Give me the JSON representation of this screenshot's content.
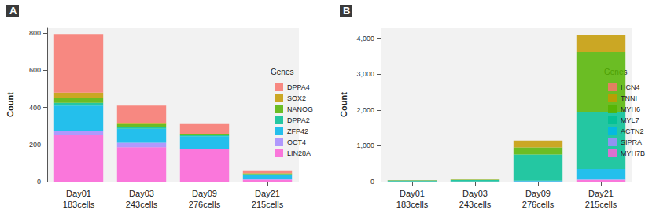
{
  "chart_data": [
    {
      "type": "bar",
      "panel": "A",
      "stacked": true,
      "grid": false,
      "legend": "right",
      "ylabel": "Count",
      "legend_title": "Genes",
      "categories": [
        "Day01",
        "Day03",
        "Day09",
        "Day21"
      ],
      "sublabels": [
        "183cells",
        "243cells",
        "276cells",
        "215cells"
      ],
      "ylim": [
        0,
        830
      ],
      "yticks": [
        0,
        200,
        400,
        600,
        800
      ],
      "series": [
        {
          "name": "DPPA4",
          "color": "#F8766D",
          "values": [
            315,
            95,
            53,
            15
          ]
        },
        {
          "name": "SOX2",
          "color": "#C49A00",
          "values": [
            30,
            5,
            2,
            2
          ]
        },
        {
          "name": "NANOG",
          "color": "#53B400",
          "values": [
            25,
            15,
            5,
            3
          ]
        },
        {
          "name": "DPPA2",
          "color": "#00C094",
          "values": [
            15,
            10,
            5,
            5
          ]
        },
        {
          "name": "ZFP42",
          "color": "#00B6EB",
          "values": [
            135,
            75,
            67,
            20
          ]
        },
        {
          "name": "OCT4",
          "color": "#A58AFF",
          "values": [
            25,
            25,
            3,
            5
          ]
        },
        {
          "name": "LIN28A",
          "color": "#FB61D7",
          "values": [
            250,
            185,
            175,
            10
          ]
        }
      ]
    },
    {
      "type": "bar",
      "panel": "B",
      "stacked": true,
      "grid": false,
      "legend": "right",
      "ylabel": "Count",
      "legend_title": "Genes",
      "categories": [
        "Day01",
        "Day03",
        "Day09",
        "Day21"
      ],
      "sublabels": [
        "183cells",
        "243cells",
        "276cells",
        "215cells"
      ],
      "ylim": [
        0,
        4300
      ],
      "yticks": [
        0,
        {
          "value": 1000,
          "label": "1,000"
        },
        {
          "value": 2000,
          "label": "2,000"
        },
        {
          "value": 3000,
          "label": "3,000"
        },
        {
          "value": 4000,
          "label": "4,000"
        }
      ],
      "series": [
        {
          "name": "HCN4",
          "color": "#F8766D",
          "values": [
            0,
            0,
            0,
            0
          ]
        },
        {
          "name": "TNNI",
          "color": "#C49A00",
          "values": [
            5,
            5,
            190,
            460
          ]
        },
        {
          "name": "MYH6",
          "color": "#53B400",
          "values": [
            10,
            12,
            200,
            1670
          ]
        },
        {
          "name": "MYL7",
          "color": "#00C094",
          "values": [
            25,
            35,
            730,
            1600
          ]
        },
        {
          "name": "ACTN2",
          "color": "#00B6EB",
          "values": [
            3,
            5,
            20,
            290
          ]
        },
        {
          "name": "SIPRA",
          "color": "#A58AFF",
          "values": [
            1,
            1,
            2,
            10
          ]
        },
        {
          "name": "MYH7B",
          "color": "#FB61D7",
          "values": [
            2,
            2,
            5,
            50
          ]
        }
      ]
    }
  ]
}
